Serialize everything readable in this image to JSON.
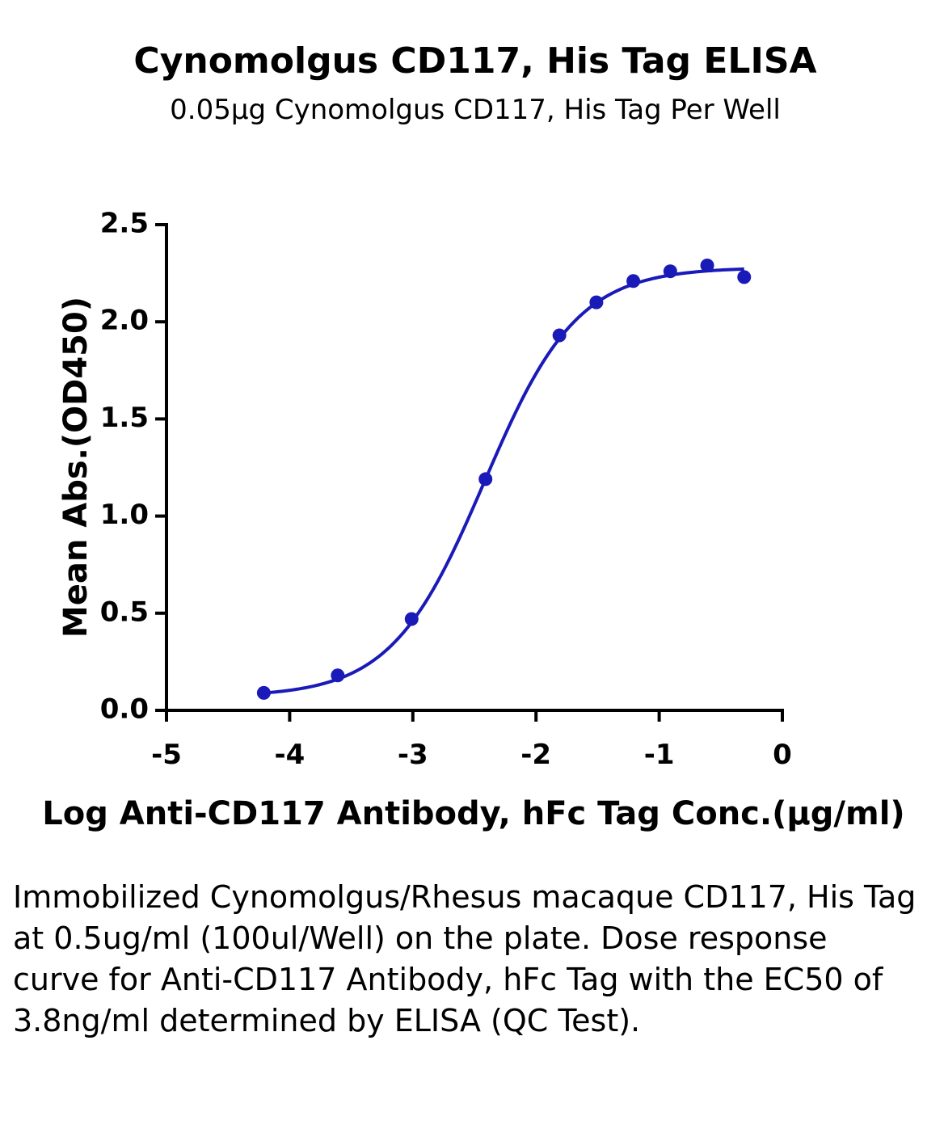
{
  "chart_data": {
    "type": "scatter",
    "title": "Cynomolgus CD117, His Tag ELISA",
    "subtitle": "0.05µg Cynomolgus CD117, His Tag Per Well",
    "xlabel": "Log Anti-CD117 Antibody, hFc Tag Conc.(µg/ml)",
    "ylabel": "Mean Abs.(OD450)",
    "xlim": [
      -5,
      0
    ],
    "ylim": [
      0,
      2.5
    ],
    "xticks": [
      "-5",
      "-4",
      "-3",
      "-2",
      "-1",
      "0"
    ],
    "yticks": [
      "0.0",
      "0.5",
      "1.0",
      "1.5",
      "2.0",
      "2.5"
    ],
    "grid": false,
    "legend": "none",
    "series": [
      {
        "x": [
          -4.21,
          -3.61,
          -3.01,
          -2.41,
          -1.81,
          -1.51,
          -1.21,
          -0.91,
          -0.61,
          -0.31
        ],
        "y": [
          0.09,
          0.18,
          0.47,
          1.19,
          1.93,
          2.1,
          2.21,
          2.26,
          2.29,
          2.23
        ],
        "fit": "4PL"
      }
    ],
    "fit_params": {
      "bottom": 0.07,
      "top": 2.28,
      "logEC50": -2.42,
      "hill": 1.15
    },
    "color": "#1a1ab8"
  },
  "caption": "Immobilized Cynomolgus/Rhesus macaque CD117, His Tag at 0.5ug/ml (100ul/Well) on the plate. Dose response curve for Anti-CD117 Antibody, hFc Tag with the EC50 of 3.8ng/ml determined by ELISA (QC Test)."
}
